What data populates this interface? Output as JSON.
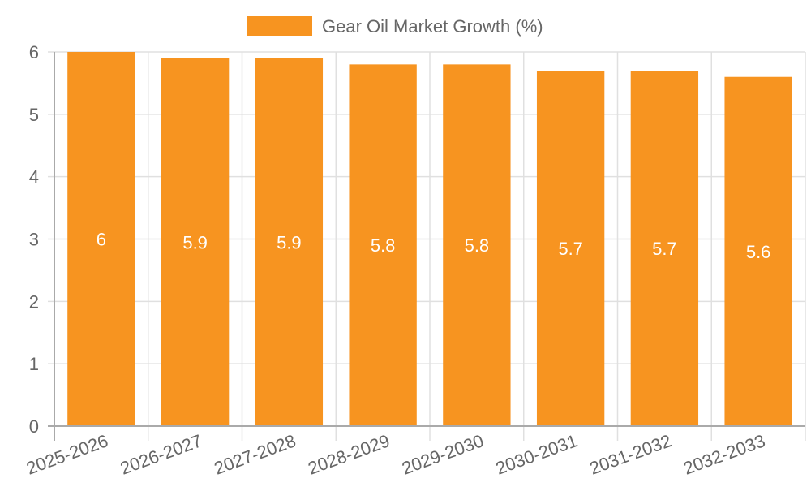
{
  "chart_data": {
    "type": "bar",
    "title": "",
    "categories": [
      "2025-2026",
      "2026-2027",
      "2027-2028",
      "2028-2029",
      "2029-2030",
      "2030-2031",
      "2031-2032",
      "2032-2033"
    ],
    "series": [
      {
        "name": "Gear Oil Market Growth (%)",
        "values": [
          6,
          5.9,
          5.9,
          5.8,
          5.8,
          5.7,
          5.7,
          5.6
        ],
        "color": "#f79420"
      }
    ],
    "values": [
      6,
      5.9,
      5.9,
      5.8,
      5.8,
      5.7,
      5.7,
      5.6
    ],
    "data_labels": [
      "6",
      "5.9",
      "5.9",
      "5.8",
      "5.8",
      "5.7",
      "5.7",
      "5.6"
    ],
    "xlabel": "",
    "ylabel": "",
    "ylim": [
      0,
      6
    ],
    "yticks": [
      0,
      1,
      2,
      3,
      4,
      5,
      6
    ],
    "grid": true,
    "legend_position": "top"
  },
  "legend": {
    "label": "Gear Oil Market Growth (%)",
    "color": "#f79420"
  },
  "colors": {
    "bar": "#f79420",
    "grid": "#e0e0e0",
    "axis": "#aaaaaa",
    "text": "#666666"
  }
}
